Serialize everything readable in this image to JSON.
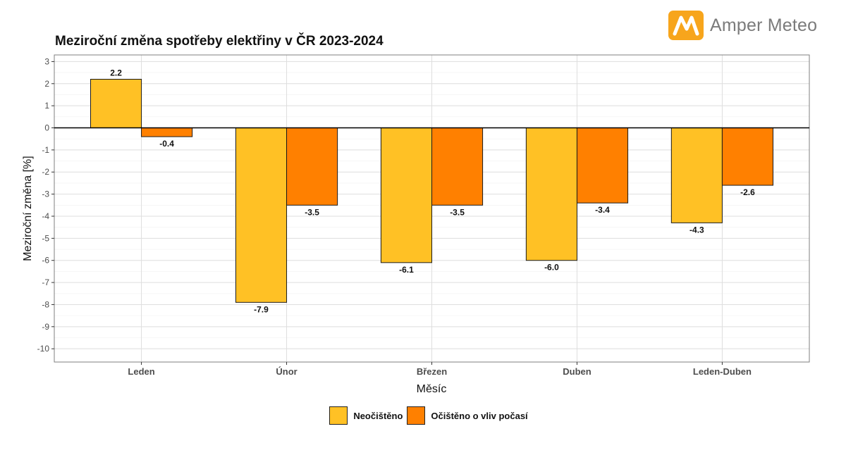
{
  "brand": {
    "name": "Amper Meteo",
    "logo_icon": "amper-meteo-logo-icon",
    "logo_color": "#f7a51c",
    "logo_text_color": "#7b7b7b"
  },
  "chart_data": {
    "type": "bar",
    "title": "Meziroční změna spotřeby elektřiny v ČR 2023-2024",
    "xlabel": "Měsíc",
    "ylabel": "Meziroční změna [%]",
    "categories": [
      "Leden",
      "Únor",
      "Březen",
      "Duben",
      "Leden-Duben"
    ],
    "series": [
      {
        "name": "Neočištěno",
        "color": "#ffc125",
        "values": [
          2.2,
          -7.9,
          -6.1,
          -6.0,
          -4.3
        ]
      },
      {
        "name": "Očištěno o vliv počasí",
        "color": "#ff8000",
        "values": [
          -0.4,
          -3.5,
          -3.5,
          -3.4,
          -2.6
        ]
      }
    ],
    "ylim": [
      -10.6,
      3.3
    ],
    "yticks": [
      3,
      2,
      1,
      0,
      -1,
      -2,
      -3,
      -4,
      -5,
      -6,
      -7,
      -8,
      -9,
      -10
    ],
    "grid": true,
    "legend_position": "bottom"
  }
}
